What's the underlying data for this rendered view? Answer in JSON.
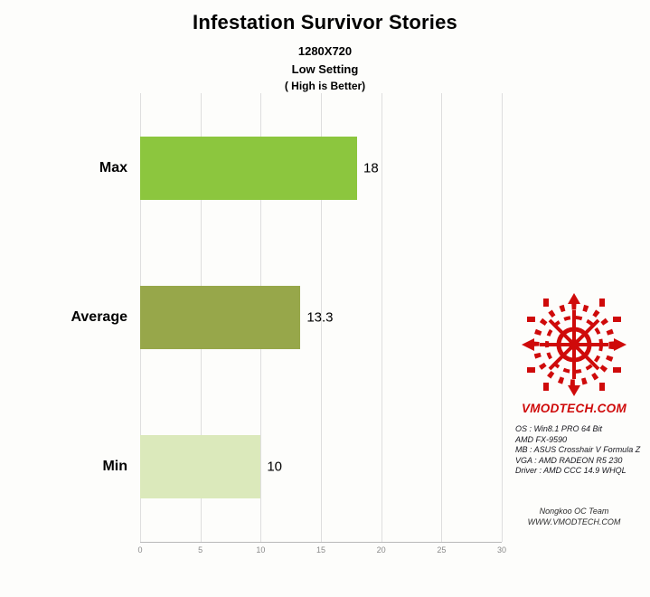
{
  "header": {
    "title": "Infestation Survivor Stories",
    "subtitle_resolution": "1280X720",
    "subtitle_setting": "Low Setting",
    "subtitle_note": "( High is Better)"
  },
  "chart_data": {
    "type": "bar",
    "orientation": "horizontal",
    "title": "Infestation Survivor Stories",
    "subtitle": "1280X720 / Low Setting / ( High is Better)",
    "categories": [
      "Max",
      "Average",
      "Min"
    ],
    "values": [
      18,
      13.3,
      10
    ],
    "value_labels": [
      "18",
      "13.3",
      "10"
    ],
    "bar_colors": [
      "#8cc63e",
      "#97a74a",
      "#dbe9bb"
    ],
    "xlabel": "",
    "ylabel": "",
    "xlim": [
      0,
      30
    ],
    "xticks": [
      0,
      5,
      10,
      15,
      20,
      25,
      30
    ],
    "grid": true,
    "legend": false
  },
  "sidebar": {
    "logo_text": "VMODTECH.COM",
    "brand_color": "#cf0a0a",
    "specs": [
      "OS : Win8.1 PRO 64 Bit",
      "AMD FX-9590",
      "MB : ASUS Crosshair V Formula Z",
      "VGA : AMD RADEON R5 230",
      "Driver : AMD CCC 14.9 WHQL"
    ],
    "credit_line1": "Nongkoo OC Team",
    "credit_line2": "WWW.VMODTECH.COM"
  }
}
